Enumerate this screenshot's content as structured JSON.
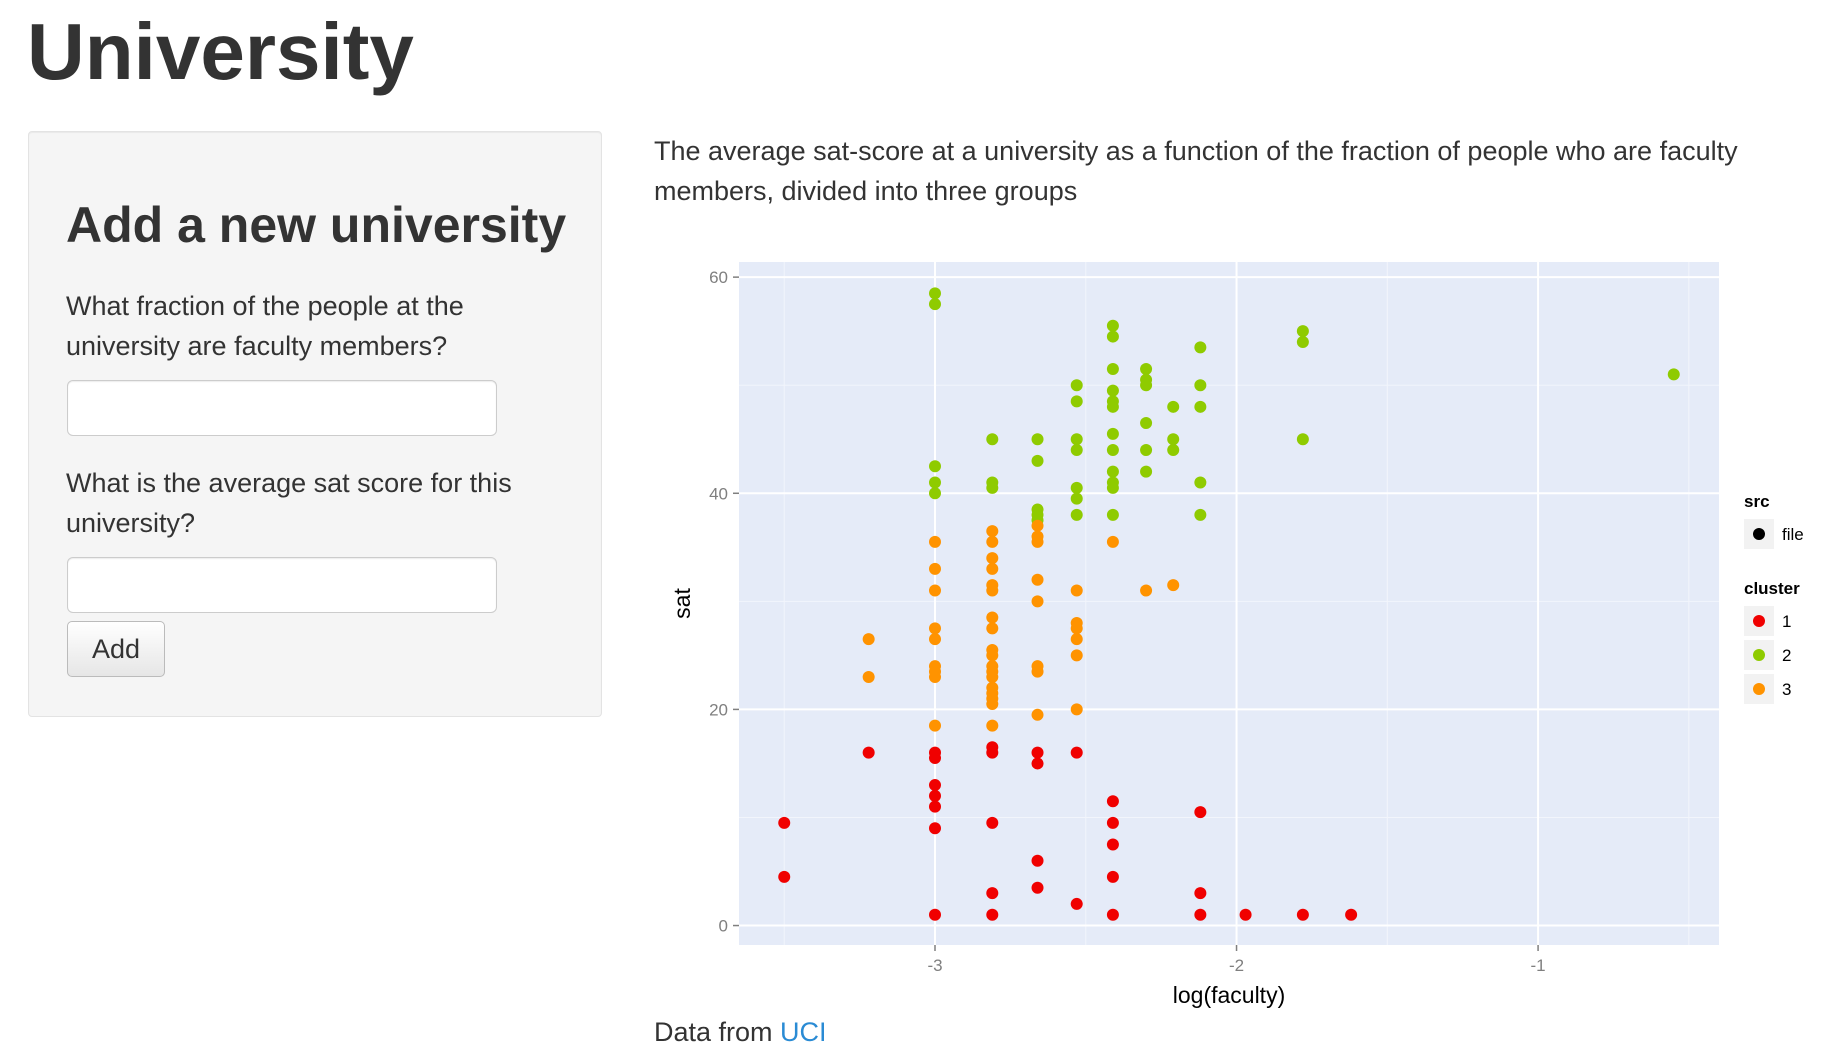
{
  "page": {
    "title": "University"
  },
  "sidebar": {
    "heading": "Add a new university",
    "fraction_label": "What fraction of the people at the university are faculty members?",
    "fraction_value": "",
    "sat_label": "What is the average sat score for this university?",
    "sat_value": "",
    "add_label": "Add"
  },
  "main": {
    "description": "The average sat-score at a university as a function of the fraction of people who are faculty members, divided into three groups"
  },
  "footer": {
    "prefix": "Data from ",
    "link_text": "UCI"
  },
  "chart_data": {
    "type": "scatter",
    "xlabel": "log(faculty)",
    "ylabel": "sat",
    "xlim": [
      -3.65,
      -0.4
    ],
    "ylim": [
      -1.8,
      61.4
    ],
    "x_ticks": [
      -3,
      -2,
      -1
    ],
    "y_ticks": [
      0,
      20,
      40,
      60
    ],
    "grid": true,
    "background": "#e5ebf8",
    "legend": {
      "placement": "right",
      "src_title": "src",
      "src_entries": [
        "file"
      ],
      "cluster_title": "cluster",
      "cluster_entries": [
        "1",
        "2",
        "3"
      ]
    },
    "series": [
      {
        "name": "1",
        "color": "#f00000",
        "points": [
          [
            -3.5,
            9.5
          ],
          [
            -3.5,
            4.5
          ],
          [
            -3.22,
            16
          ],
          [
            -3.0,
            16
          ],
          [
            -3.0,
            15.5
          ],
          [
            -3.0,
            13
          ],
          [
            -3.0,
            12
          ],
          [
            -3.0,
            11
          ],
          [
            -3.0,
            9
          ],
          [
            -3.0,
            1
          ],
          [
            -2.81,
            16.5
          ],
          [
            -2.81,
            16
          ],
          [
            -2.81,
            9.5
          ],
          [
            -2.81,
            3
          ],
          [
            -2.81,
            1
          ],
          [
            -2.66,
            16
          ],
          [
            -2.66,
            15
          ],
          [
            -2.66,
            6
          ],
          [
            -2.66,
            3.5
          ],
          [
            -2.53,
            16
          ],
          [
            -2.53,
            2
          ],
          [
            -2.41,
            11.5
          ],
          [
            -2.41,
            9.5
          ],
          [
            -2.41,
            7.5
          ],
          [
            -2.41,
            4.5
          ],
          [
            -2.41,
            1
          ],
          [
            -2.12,
            10.5
          ],
          [
            -2.12,
            3
          ],
          [
            -2.12,
            1
          ],
          [
            -1.97,
            1
          ],
          [
            -1.78,
            1
          ],
          [
            -1.62,
            1
          ]
        ]
      },
      {
        "name": "2",
        "color": "#8fcb00",
        "points": [
          [
            -3.0,
            58.5
          ],
          [
            -3.0,
            57.5
          ],
          [
            -3.0,
            42.5
          ],
          [
            -3.0,
            41
          ],
          [
            -3.0,
            40
          ],
          [
            -2.81,
            45
          ],
          [
            -2.81,
            41
          ],
          [
            -2.81,
            40.5
          ],
          [
            -2.66,
            45
          ],
          [
            -2.66,
            43
          ],
          [
            -2.66,
            38.5
          ],
          [
            -2.66,
            38
          ],
          [
            -2.66,
            37.5
          ],
          [
            -2.53,
            50
          ],
          [
            -2.53,
            48.5
          ],
          [
            -2.53,
            45
          ],
          [
            -2.53,
            44
          ],
          [
            -2.53,
            40.5
          ],
          [
            -2.53,
            39.5
          ],
          [
            -2.53,
            38
          ],
          [
            -2.41,
            55.5
          ],
          [
            -2.41,
            54.5
          ],
          [
            -2.41,
            51.5
          ],
          [
            -2.41,
            49.5
          ],
          [
            -2.41,
            48.5
          ],
          [
            -2.41,
            48
          ],
          [
            -2.41,
            45.5
          ],
          [
            -2.41,
            44
          ],
          [
            -2.41,
            42
          ],
          [
            -2.41,
            41
          ],
          [
            -2.41,
            40.5
          ],
          [
            -2.41,
            38
          ],
          [
            -2.3,
            51.5
          ],
          [
            -2.3,
            50.5
          ],
          [
            -2.3,
            50
          ],
          [
            -2.3,
            46.5
          ],
          [
            -2.3,
            44
          ],
          [
            -2.3,
            42
          ],
          [
            -2.21,
            48
          ],
          [
            -2.21,
            45
          ],
          [
            -2.21,
            44
          ],
          [
            -2.12,
            53.5
          ],
          [
            -2.12,
            50
          ],
          [
            -2.12,
            48
          ],
          [
            -2.12,
            41
          ],
          [
            -2.12,
            38
          ],
          [
            -1.78,
            55
          ],
          [
            -1.78,
            54
          ],
          [
            -1.78,
            45
          ],
          [
            -0.55,
            51
          ]
        ]
      },
      {
        "name": "3",
        "color": "#ff9300",
        "points": [
          [
            -3.22,
            26.5
          ],
          [
            -3.22,
            23
          ],
          [
            -3.0,
            35.5
          ],
          [
            -3.0,
            33
          ],
          [
            -3.0,
            31
          ],
          [
            -3.0,
            27.5
          ],
          [
            -3.0,
            26.5
          ],
          [
            -3.0,
            24
          ],
          [
            -3.0,
            23.5
          ],
          [
            -3.0,
            23
          ],
          [
            -3.0,
            18.5
          ],
          [
            -2.81,
            36.5
          ],
          [
            -2.81,
            35.5
          ],
          [
            -2.81,
            34
          ],
          [
            -2.81,
            33
          ],
          [
            -2.81,
            31.5
          ],
          [
            -2.81,
            31
          ],
          [
            -2.81,
            28.5
          ],
          [
            -2.81,
            27.5
          ],
          [
            -2.81,
            25.5
          ],
          [
            -2.81,
            25
          ],
          [
            -2.81,
            24
          ],
          [
            -2.81,
            23.5
          ],
          [
            -2.81,
            23
          ],
          [
            -2.81,
            22
          ],
          [
            -2.81,
            21.5
          ],
          [
            -2.81,
            21
          ],
          [
            -2.81,
            20.5
          ],
          [
            -2.81,
            18.5
          ],
          [
            -2.66,
            37
          ],
          [
            -2.66,
            36
          ],
          [
            -2.66,
            35.5
          ],
          [
            -2.66,
            32
          ],
          [
            -2.66,
            30
          ],
          [
            -2.66,
            24
          ],
          [
            -2.66,
            23.5
          ],
          [
            -2.66,
            19.5
          ],
          [
            -2.53,
            31
          ],
          [
            -2.53,
            28
          ],
          [
            -2.53,
            27.5
          ],
          [
            -2.53,
            26.5
          ],
          [
            -2.53,
            25
          ],
          [
            -2.53,
            20
          ],
          [
            -2.41,
            35.5
          ],
          [
            -2.3,
            31
          ],
          [
            -2.21,
            31.5
          ]
        ]
      }
    ]
  }
}
